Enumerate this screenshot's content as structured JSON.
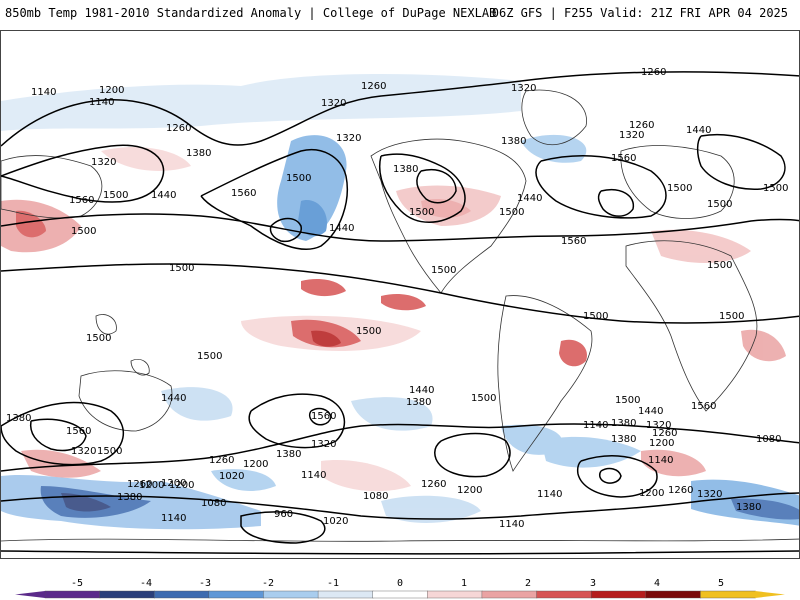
{
  "header": {
    "title": "850mb Temp 1981-2010 Standardized Anomaly | College of DuPage NEXLAB",
    "run_info": "06Z GFS | F255 Valid: 21Z FRI APR 04 2025"
  },
  "map": {
    "contour_labels": [
      "1200",
      "1140",
      "1260",
      "1320",
      "1320",
      "1260",
      "1260",
      "1140",
      "1320",
      "1380",
      "1560",
      "1500",
      "1440",
      "1500",
      "1560",
      "1500",
      "1440",
      "1320",
      "1380",
      "1500",
      "1380",
      "1500",
      "1440",
      "1560",
      "1260",
      "1320",
      "1440",
      "1560",
      "1500",
      "1500",
      "1500",
      "1500",
      "1500",
      "1500",
      "1500",
      "1500",
      "1500",
      "1500",
      "1500",
      "1440",
      "1380",
      "1560",
      "1500",
      "1440",
      "1500",
      "1560",
      "1320",
      "1380",
      "1560",
      "1260",
      "1200",
      "1380",
      "1140",
      "1020",
      "1200",
      "1080",
      "960",
      "1020",
      "1200",
      "1140",
      "1080",
      "1260",
      "1200",
      "1140",
      "1140",
      "1380",
      "1320",
      "1260",
      "1200",
      "1080",
      "1140",
      "1200",
      "1260",
      "1320",
      "1380",
      "1440",
      "1500",
      "1320",
      "1380",
      "1260",
      "1200",
      "1140",
      "1380",
      "1320"
    ]
  },
  "colorbar": {
    "ticks": [
      "-5",
      "-4",
      "-3",
      "-2",
      "-1",
      "0",
      "1",
      "2",
      "3",
      "4",
      "5"
    ],
    "colors": [
      "#5b2a8a",
      "#2a3f7a",
      "#3d6bb0",
      "#5f97d6",
      "#a9cdee",
      "#dce8f4",
      "#ffffff",
      "#f6d6d6",
      "#eaa3a3",
      "#d65454",
      "#b51c1c",
      "#7a0a0a",
      "#f0c020"
    ]
  }
}
